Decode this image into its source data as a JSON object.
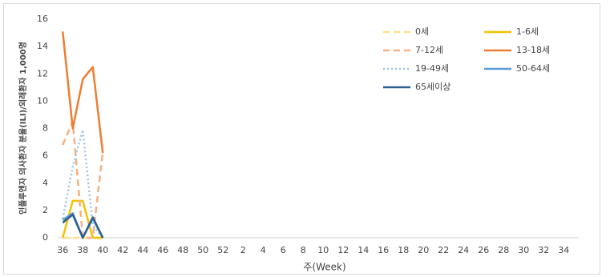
{
  "chart_data": {
    "type": "line",
    "y_label": "인플루엔자 의사환자 분율(ILI)/외래환자 1,000명",
    "x_label": "주(Week)",
    "categories": [
      "36",
      null,
      "38",
      null,
      "40",
      null,
      "42",
      null,
      "44",
      null,
      "46",
      null,
      "48",
      null,
      "50",
      null,
      "52",
      null,
      "2",
      null,
      "4",
      null,
      "6",
      null,
      "8",
      null,
      "10",
      null,
      "12",
      null,
      "14",
      null,
      "16",
      null,
      "18",
      null,
      "20",
      null,
      "22",
      null,
      "24",
      null,
      "26",
      null,
      "28",
      null,
      "30",
      null,
      "32",
      null,
      "34",
      null
    ],
    "ylim": [
      0,
      16
    ],
    "yticks": [
      0,
      2,
      4,
      6,
      8,
      10,
      12,
      14,
      16
    ],
    "grid": false,
    "legend": "top-right",
    "series": [
      {
        "name": "0세",
        "color": "#ffe08a",
        "dash": "dashed",
        "values": [
          0,
          0,
          0,
          0,
          0,
          null,
          null,
          null,
          null,
          null,
          null,
          null,
          null,
          null,
          null,
          null,
          null,
          null,
          null,
          null,
          null,
          null,
          null,
          null,
          null,
          null,
          null,
          null,
          null,
          null,
          null,
          null,
          null,
          null,
          null,
          null,
          null,
          null,
          null,
          null,
          null,
          null,
          null,
          null,
          null,
          null,
          null,
          null,
          null,
          null,
          null,
          null
        ]
      },
      {
        "name": "1-6세",
        "color": "#f2c200",
        "dash": "solid",
        "values": [
          0,
          2.7,
          2.7,
          0,
          0,
          null,
          null,
          null,
          null,
          null,
          null,
          null,
          null,
          null,
          null,
          null,
          null,
          null,
          null,
          null,
          null,
          null,
          null,
          null,
          null,
          null,
          null,
          null,
          null,
          null,
          null,
          null,
          null,
          null,
          null,
          null,
          null,
          null,
          null,
          null,
          null,
          null,
          null,
          null,
          null,
          null,
          null,
          null,
          null,
          null,
          null,
          null
        ]
      },
      {
        "name": "7-12세",
        "color": "#f4b183",
        "dash": "dashed",
        "values": [
          6.8,
          8.5,
          0,
          0,
          6.3,
          null,
          null,
          null,
          null,
          null,
          null,
          null,
          null,
          null,
          null,
          null,
          null,
          null,
          null,
          null,
          null,
          null,
          null,
          null,
          null,
          null,
          null,
          null,
          null,
          null,
          null,
          null,
          null,
          null,
          null,
          null,
          null,
          null,
          null,
          null,
          null,
          null,
          null,
          null,
          null,
          null,
          null,
          null,
          null,
          null,
          null,
          null
        ]
      },
      {
        "name": "13-18세",
        "color": "#ed7d31",
        "dash": "solid",
        "values": [
          15.1,
          8.0,
          11.6,
          12.5,
          6.2,
          null,
          null,
          null,
          null,
          null,
          null,
          null,
          null,
          null,
          null,
          null,
          null,
          null,
          null,
          null,
          null,
          null,
          null,
          null,
          null,
          null,
          null,
          null,
          null,
          null,
          null,
          null,
          null,
          null,
          null,
          null,
          null,
          null,
          null,
          null,
          null,
          null,
          null,
          null,
          null,
          null,
          null,
          null,
          null,
          null,
          null,
          null
        ]
      },
      {
        "name": "19-49세",
        "color": "#9dc3e6",
        "dash": "dotted",
        "values": [
          1.4,
          5.2,
          7.9,
          0.9,
          0,
          null,
          null,
          null,
          null,
          null,
          null,
          null,
          null,
          null,
          null,
          null,
          null,
          null,
          null,
          null,
          null,
          null,
          null,
          null,
          null,
          null,
          null,
          null,
          null,
          null,
          null,
          null,
          null,
          null,
          null,
          null,
          null,
          null,
          null,
          null,
          null,
          null,
          null,
          null,
          null,
          null,
          null,
          null,
          null,
          null,
          null,
          null
        ]
      },
      {
        "name": "50-64세",
        "color": "#5b9bd5",
        "dash": "solid",
        "values": [
          1.3,
          1.8,
          0,
          1.4,
          0,
          null,
          null,
          null,
          null,
          null,
          null,
          null,
          null,
          null,
          null,
          null,
          null,
          null,
          null,
          null,
          null,
          null,
          null,
          null,
          null,
          null,
          null,
          null,
          null,
          null,
          null,
          null,
          null,
          null,
          null,
          null,
          null,
          null,
          null,
          null,
          null,
          null,
          null,
          null,
          null,
          null,
          null,
          null,
          null,
          null,
          null,
          null
        ]
      },
      {
        "name": "65세이상",
        "color": "#2f5f8c",
        "dash": "solid",
        "values": [
          1.1,
          1.7,
          0,
          1.5,
          0,
          null,
          null,
          null,
          null,
          null,
          null,
          null,
          null,
          null,
          null,
          null,
          null,
          null,
          null,
          null,
          null,
          null,
          null,
          null,
          null,
          null,
          null,
          null,
          null,
          null,
          null,
          null,
          null,
          null,
          null,
          null,
          null,
          null,
          null,
          null,
          null,
          null,
          null,
          null,
          null,
          null,
          null,
          null,
          null,
          null,
          null,
          null
        ]
      }
    ]
  }
}
